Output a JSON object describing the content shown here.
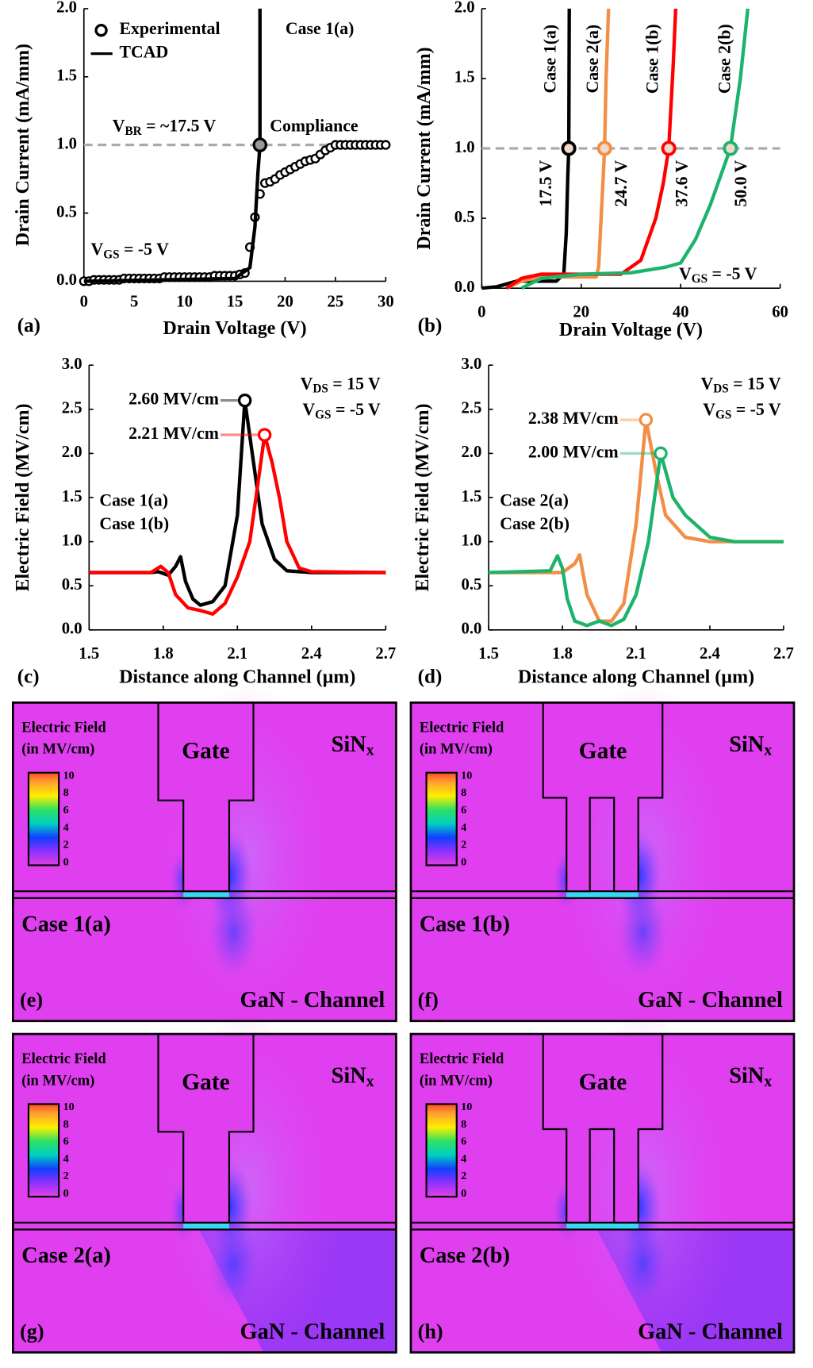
{
  "chart_data": [
    {
      "type": "line",
      "panel": "(a)",
      "x_label": "Drain Voltage (V)",
      "y_label": "Drain Current (mA/mm)",
      "xlim": [
        0,
        30
      ],
      "xticks": [
        0,
        5,
        10,
        15,
        20,
        25,
        30
      ],
      "ylim": [
        0,
        2
      ],
      "yticks": [
        {
          "value": 0,
          "label": "0.0"
        },
        0.5,
        {
          "value": 1,
          "label": "1.0"
        },
        1.5,
        {
          "value": 2,
          "label": "2.0"
        }
      ],
      "hline": 1,
      "legend": "upper left",
      "highlight": {
        "x": 17.5,
        "y": 1
      },
      "annotations": [
        "Case 1(a)",
        "Compliance",
        {
          "text": "V",
          "sub": "BR",
          "tail": " = ~17.5 V"
        },
        {
          "text": "V",
          "sub": "GS",
          "tail": " = -5 V"
        }
      ],
      "series": [
        {
          "name": "Experimental",
          "style": "markers",
          "color": "#000000",
          "x": [
            0,
            0.5,
            1,
            1.5,
            2,
            2.5,
            3,
            3.5,
            4,
            4.5,
            5,
            5.5,
            6,
            6.5,
            7,
            7.5,
            8,
            8.5,
            9,
            9.5,
            10,
            10.5,
            11,
            11.5,
            12,
            12.5,
            13,
            13.5,
            14,
            14.5,
            15,
            15.5,
            16,
            16.5,
            17,
            17.5,
            18,
            18.5,
            19,
            19.5,
            20,
            20.5,
            21,
            21.5,
            22,
            22.5,
            23,
            23.5,
            24,
            24.5,
            25,
            25.5,
            26,
            26.5,
            27,
            27.5,
            28,
            28.5,
            29,
            29.5,
            30
          ],
          "values": [
            0,
            0,
            0.01,
            0.01,
            0.01,
            0.01,
            0.01,
            0.01,
            0.02,
            0.02,
            0.02,
            0.02,
            0.02,
            0.02,
            0.02,
            0.02,
            0.03,
            0.03,
            0.03,
            0.03,
            0.03,
            0.03,
            0.03,
            0.03,
            0.03,
            0.03,
            0.04,
            0.04,
            0.04,
            0.04,
            0.04,
            0.05,
            0.06,
            0.25,
            0.47,
            0.64,
            0.72,
            0.73,
            0.75,
            0.78,
            0.8,
            0.82,
            0.84,
            0.86,
            0.88,
            0.89,
            0.9,
            0.93,
            0.96,
            0.98,
            1,
            1,
            1,
            1,
            1,
            1,
            1,
            1,
            1,
            1,
            1
          ]
        },
        {
          "name": "TCAD",
          "style": "line",
          "color": "#000000",
          "x": [
            0,
            15,
            16.5,
            17,
            17.3,
            17.5,
            17.5
          ],
          "values": [
            0,
            0.02,
            0.1,
            0.4,
            0.8,
            1,
            2
          ]
        }
      ]
    },
    {
      "type": "line",
      "panel": "(b)",
      "x_label": "Drain Voltage (V)",
      "y_label": "Drain Current (mA/mm)",
      "xlim": [
        0,
        60
      ],
      "xticks": [
        0,
        20,
        40,
        60
      ],
      "ylim": [
        0,
        2
      ],
      "yticks": [
        {
          "value": 0,
          "label": "0.0"
        },
        0.5,
        {
          "value": 1,
          "label": "1.0"
        },
        1.5,
        {
          "value": 2,
          "label": "2.0"
        }
      ],
      "hline": 1,
      "annotations": [
        {
          "text": "V",
          "sub": "GS",
          "tail": " = -5 V"
        }
      ],
      "series": [
        {
          "name": "Case 1(a)",
          "style": "line",
          "color": "#000000",
          "x": [
            0,
            3,
            5,
            7,
            10,
            15,
            16.5,
            17,
            17.3,
            17.5,
            17.6
          ],
          "values": [
            0,
            0.01,
            0.03,
            0.05,
            0.05,
            0.05,
            0.1,
            0.4,
            0.8,
            1,
            2
          ],
          "breakdown": {
            "x": 17.5,
            "y": 1,
            "label": "17.5 V"
          }
        },
        {
          "name": "Case 2(a)",
          "style": "line",
          "color": "#f28e45",
          "x": [
            5,
            8,
            12,
            20,
            23,
            23.5,
            24,
            24.5,
            24.7,
            25,
            25.5
          ],
          "values": [
            0,
            0.05,
            0.08,
            0.08,
            0.08,
            0.15,
            0.5,
            0.85,
            1,
            1.5,
            2
          ],
          "breakdown": {
            "x": 24.7,
            "y": 1,
            "label": "24.7 V"
          }
        },
        {
          "name": "Case 1(b)",
          "style": "line",
          "color": "#ff0000",
          "x": [
            5,
            8,
            12,
            20,
            28,
            32,
            35,
            36.5,
            37.6,
            38.5,
            39
          ],
          "values": [
            0,
            0.07,
            0.1,
            0.1,
            0.1,
            0.2,
            0.5,
            0.75,
            1,
            1.6,
            2
          ],
          "breakdown": {
            "x": 37.6,
            "y": 1,
            "label": "37.6 V"
          }
        },
        {
          "name": "Case 2(b)",
          "style": "line",
          "color": "#1db36b",
          "x": [
            8,
            12,
            20,
            30,
            37,
            40,
            43,
            46,
            48,
            50,
            52,
            53.5
          ],
          "values": [
            0,
            0.07,
            0.1,
            0.11,
            0.15,
            0.18,
            0.35,
            0.6,
            0.8,
            1,
            1.5,
            2
          ],
          "breakdown": {
            "x": 50,
            "y": 1,
            "label": "50.0 V"
          }
        }
      ]
    },
    {
      "type": "line",
      "panel": "(c)",
      "x_label": "Distance along Channel (µm)",
      "y_label": "Electric Field (MV/cm)",
      "xlim": [
        1.5,
        2.7
      ],
      "xticks": [
        1.5,
        1.8,
        2.1,
        2.4,
        2.7
      ],
      "ylim": [
        0,
        3
      ],
      "yticks": [
        {
          "value": 0,
          "label": "0.0"
        },
        0.5,
        {
          "value": 1,
          "label": "1.0"
        },
        1.5,
        {
          "value": 2,
          "label": "2.0"
        },
        2.5,
        {
          "value": 3,
          "label": "3.0"
        }
      ],
      "annotations": [
        {
          "text": "V",
          "sub": "DS",
          "tail": " = 15 V"
        },
        {
          "text": "V",
          "sub": "GS",
          "tail": " = -5 V"
        }
      ],
      "series": [
        {
          "name": "Case 1(a)",
          "style": "line",
          "color": "#000000",
          "x": [
            1.5,
            1.75,
            1.78,
            1.82,
            1.85,
            1.87,
            1.89,
            1.92,
            1.95,
            2.0,
            2.05,
            2.1,
            2.13,
            2.16,
            2.2,
            2.25,
            2.3,
            2.4,
            2.7
          ],
          "values": [
            0.65,
            0.65,
            0.66,
            0.62,
            0.72,
            0.83,
            0.55,
            0.35,
            0.28,
            0.32,
            0.5,
            1.3,
            2.6,
            2.0,
            1.2,
            0.8,
            0.67,
            0.65,
            0.65
          ],
          "peak": {
            "x": 2.13,
            "y": 2.6,
            "label": "2.60 MV/cm"
          }
        },
        {
          "name": "Case 1(b)",
          "style": "line",
          "color": "#ff0000",
          "x": [
            1.5,
            1.75,
            1.79,
            1.82,
            1.85,
            1.9,
            1.95,
            2.0,
            2.05,
            2.1,
            2.15,
            2.18,
            2.21,
            2.24,
            2.27,
            2.3,
            2.35,
            2.4,
            2.7
          ],
          "values": [
            0.65,
            0.65,
            0.72,
            0.65,
            0.4,
            0.25,
            0.22,
            0.18,
            0.3,
            0.6,
            1.0,
            1.6,
            2.21,
            1.9,
            1.5,
            1.0,
            0.7,
            0.66,
            0.65
          ],
          "peak": {
            "x": 2.21,
            "y": 2.21,
            "label": "2.21 MV/cm"
          }
        }
      ]
    },
    {
      "type": "line",
      "panel": "(d)",
      "x_label": "Distance along Channel (µm)",
      "y_label": "Electric Field (MV/cm)",
      "xlim": [
        1.5,
        2.7
      ],
      "xticks": [
        1.5,
        1.8,
        2.1,
        2.4,
        2.7
      ],
      "ylim": [
        0,
        3
      ],
      "yticks": [
        {
          "value": 0,
          "label": "0.0"
        },
        0.5,
        {
          "value": 1,
          "label": "1.0"
        },
        1.5,
        {
          "value": 2,
          "label": "2.0"
        },
        2.5,
        {
          "value": 3,
          "label": "3.0"
        }
      ],
      "annotations": [
        {
          "text": "V",
          "sub": "DS",
          "tail": " = 15 V"
        },
        {
          "text": "V",
          "sub": "GS",
          "tail": " = -5 V"
        }
      ],
      "series": [
        {
          "name": "Case 2(a)",
          "style": "line",
          "color": "#f28e45",
          "x": [
            1.5,
            1.75,
            1.8,
            1.85,
            1.87,
            1.9,
            1.95,
            2.0,
            2.05,
            2.1,
            2.14,
            2.18,
            2.22,
            2.3,
            2.4,
            2.5,
            2.7
          ],
          "values": [
            0.65,
            0.65,
            0.65,
            0.75,
            0.85,
            0.4,
            0.1,
            0.1,
            0.3,
            1.2,
            2.38,
            1.8,
            1.3,
            1.05,
            1.0,
            1.0,
            1.0
          ],
          "peak": {
            "x": 2.14,
            "y": 2.38,
            "label": "2.38 MV/cm"
          }
        },
        {
          "name": "Case 2(b)",
          "style": "line",
          "color": "#1db36b",
          "x": [
            1.5,
            1.75,
            1.78,
            1.8,
            1.82,
            1.85,
            1.9,
            1.95,
            2.0,
            2.05,
            2.1,
            2.15,
            2.2,
            2.25,
            2.3,
            2.4,
            2.5,
            2.7
          ],
          "values": [
            0.65,
            0.67,
            0.84,
            0.7,
            0.35,
            0.1,
            0.05,
            0.1,
            0.05,
            0.12,
            0.4,
            1.0,
            2.0,
            1.5,
            1.3,
            1.05,
            1.0,
            1.0
          ],
          "peak": {
            "x": 2.2,
            "y": 2.0,
            "label": "2.00 MV/cm"
          }
        }
      ]
    }
  ],
  "field_maps": [
    {
      "panel": "(e)",
      "case": "Case 1(a)",
      "gate": "Gate",
      "dielectric": "SiN",
      "dielectric_sub": "x",
      "channel": "GaN - Channel",
      "colorbar_title": [
        "Electric Field",
        "(in MV/cm)"
      ],
      "colorbar_ticks": [
        10,
        8,
        6,
        4,
        2,
        0
      ]
    },
    {
      "panel": "(f)",
      "case": "Case 1(b)",
      "gate": "Gate",
      "dielectric": "SiN",
      "dielectric_sub": "x",
      "channel": "GaN - Channel",
      "colorbar_title": [
        "Electric Field",
        "(in MV/cm)"
      ],
      "colorbar_ticks": [
        10,
        8,
        6,
        4,
        2,
        0
      ]
    },
    {
      "panel": "(g)",
      "case": "Case 2(a)",
      "gate": "Gate",
      "dielectric": "SiN",
      "dielectric_sub": "x",
      "channel": "GaN - Channel",
      "colorbar_title": [
        "Electric Field",
        "(in MV/cm)"
      ],
      "colorbar_ticks": [
        10,
        8,
        6,
        4,
        2,
        0
      ]
    },
    {
      "panel": "(h)",
      "case": "Case 2(b)",
      "gate": "Gate",
      "dielectric": "SiN",
      "dielectric_sub": "x",
      "channel": "GaN - Channel",
      "colorbar_title": [
        "Electric Field",
        "(in MV/cm)"
      ],
      "colorbar_ticks": [
        10,
        8,
        6,
        4,
        2,
        0
      ]
    }
  ]
}
